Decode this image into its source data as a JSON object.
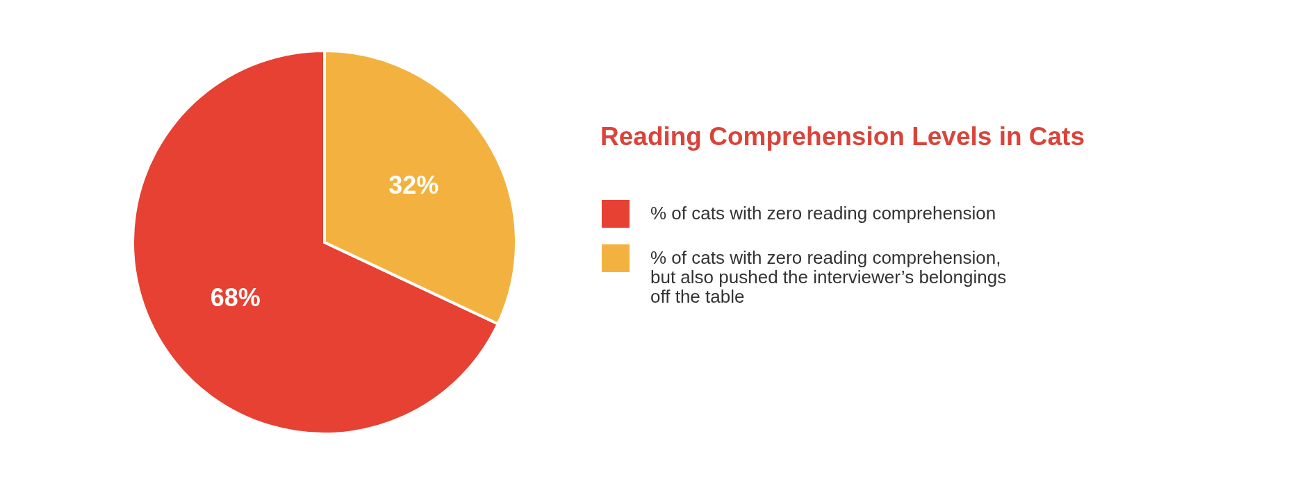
{
  "chart_data": {
    "type": "pie",
    "title": "Reading Comprehension Levels in Cats",
    "categories": [
      "% of cats with zero reading comprehension",
      "% of cats with zero reading comprehension, but also pushed the interviewer’s belongings off the table"
    ],
    "values": [
      68,
      32
    ],
    "colors": [
      "#e64132",
      "#f3b23f"
    ],
    "value_labels": [
      "68%",
      "32%"
    ],
    "legend": "right"
  }
}
